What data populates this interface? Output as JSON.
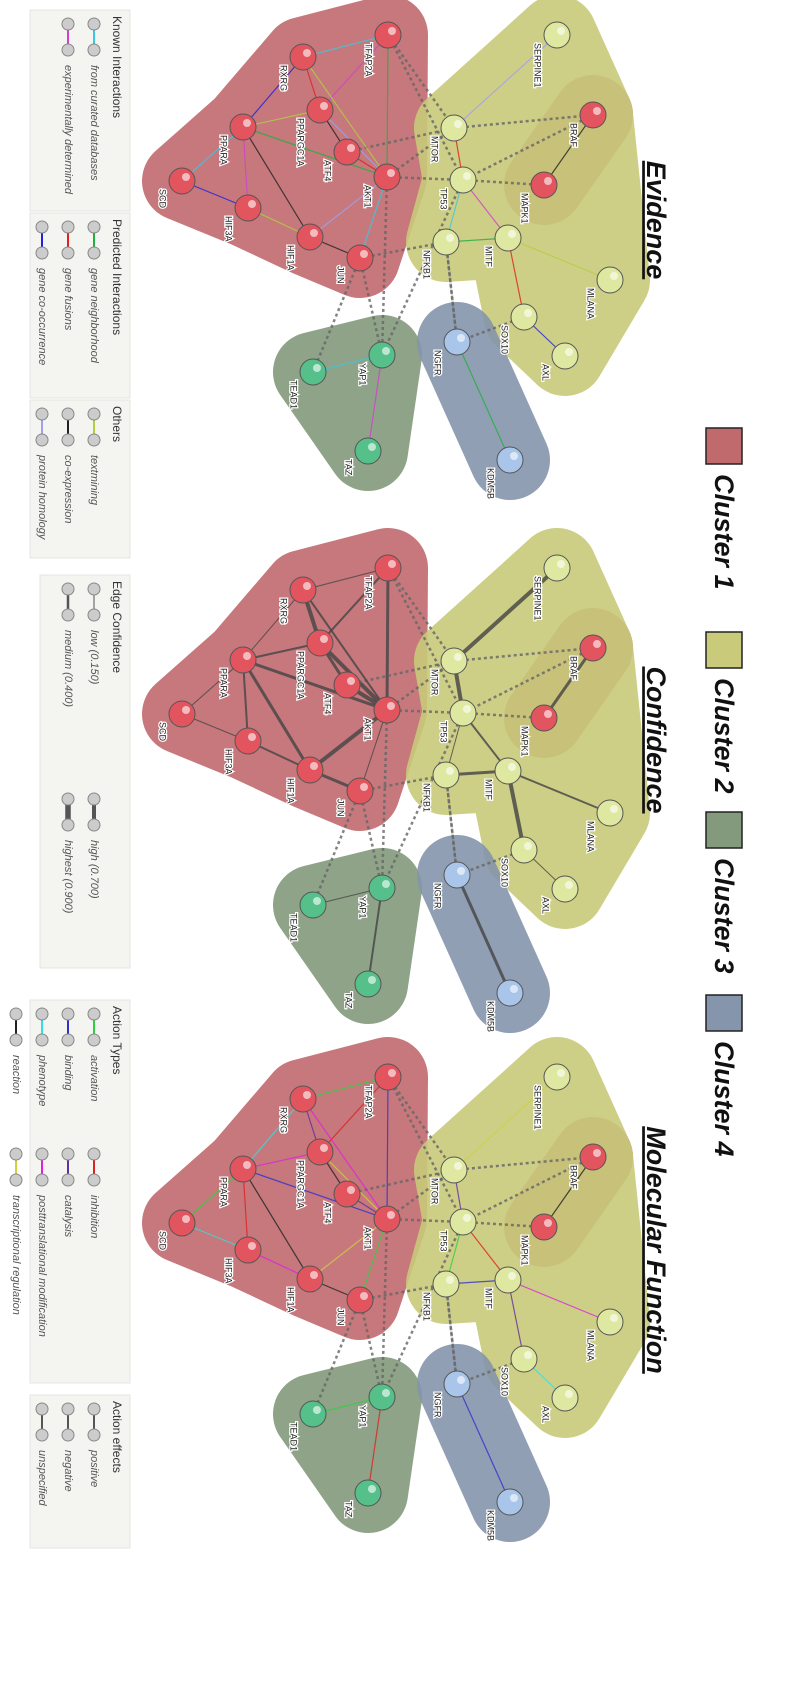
{
  "clusters": [
    "Cluster 1",
    "Cluster 2",
    "Cluster 3",
    "Cluster 4"
  ],
  "nodes": [
    "TFAP2A",
    "RXRG",
    "PPARGC1A",
    "PPARA",
    "ATF4",
    "SCD",
    "HIF3A",
    "HIF1A",
    "JUN",
    "AKT1",
    "MTOR",
    "TP53",
    "MAPK1",
    "BRAF",
    "SERPINE1",
    "NFKB1",
    "MITF",
    "MLANA",
    "SOX10",
    "AXL",
    "NGFR",
    "YAP1",
    "TEAD1",
    "TAZ",
    "KDM5B"
  ],
  "panels": [
    {
      "title": "Evidence",
      "legend": {
        "sections": [
          {
            "title": "Known Interactions",
            "items": [
              "from curated databases",
              "experimentally determined"
            ]
          },
          {
            "title": "Predicted Interactions",
            "items": [
              "gene neighborhood",
              "gene fusions",
              "gene co-occurrence"
            ]
          },
          {
            "title": "Others",
            "items": [
              "textmining",
              "co-expression",
              "protein homology"
            ]
          }
        ]
      }
    },
    {
      "title": "Confidence",
      "legend": {
        "sections": [
          {
            "title": "Edge Confidence",
            "items": [
              "low (0.150)",
              "medium (0.400)",
              "high (0.700)",
              "highest (0.900)"
            ]
          }
        ]
      }
    },
    {
      "title": "Molecular Function",
      "legend": {
        "sections": [
          {
            "title": "Action Types",
            "items": [
              "activation",
              "inhibition",
              "binding",
              "catalysis",
              "phenotype",
              "posttranslational modification",
              "reaction",
              "transcriptional regulation"
            ]
          },
          {
            "title": "Action effects",
            "items": [
              "positive",
              "negative",
              "unspecified"
            ]
          }
        ]
      }
    }
  ]
}
